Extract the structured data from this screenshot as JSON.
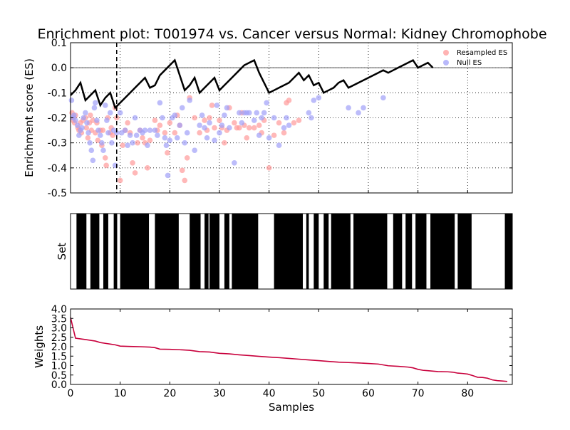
{
  "chart_data": [
    {
      "type": "scatter",
      "title": "Enrichment plot: T001974 vs. Cancer versus Normal: Kidney Chromophobe",
      "ylabel": "Enrichment score (ES)",
      "xlim": [
        0,
        89
      ],
      "ylim": [
        -0.5,
        0.1
      ],
      "yticks": [
        "-0.5",
        "-0.4",
        "-0.3",
        "-0.2",
        "-0.1",
        "0.0",
        "0.1"
      ],
      "grid": true,
      "legend_position": "top-right",
      "cutoff_x": 9.3,
      "es_line": {
        "x": [
          0,
          1,
          2,
          3,
          4,
          5,
          6,
          7,
          8,
          9,
          10,
          11,
          12,
          13,
          14,
          15,
          16,
          17,
          18,
          19,
          20,
          21,
          22,
          23,
          24,
          25,
          26,
          27,
          28,
          29,
          30,
          31,
          32,
          33,
          34,
          35,
          36,
          37,
          38,
          39,
          40,
          41,
          42,
          43,
          44,
          45,
          46,
          47,
          48,
          49,
          50,
          51,
          52,
          53,
          54,
          55,
          56,
          57,
          58,
          59,
          60,
          61,
          62,
          63,
          64,
          65,
          66,
          67,
          68,
          69,
          70,
          71,
          72,
          73
        ],
        "y": [
          -0.11,
          -0.09,
          -0.06,
          -0.13,
          -0.11,
          -0.09,
          -0.15,
          -0.12,
          -0.1,
          -0.16,
          -0.14,
          -0.12,
          -0.1,
          -0.08,
          -0.06,
          -0.04,
          -0.08,
          -0.07,
          -0.03,
          -0.01,
          0.01,
          0.03,
          -0.03,
          -0.09,
          -0.07,
          -0.04,
          -0.1,
          -0.08,
          -0.06,
          -0.04,
          -0.09,
          -0.07,
          -0.05,
          -0.03,
          -0.01,
          0.01,
          0.02,
          0.03,
          -0.02,
          -0.06,
          -0.1,
          -0.09,
          -0.08,
          -0.07,
          -0.06,
          -0.04,
          -0.02,
          -0.05,
          -0.03,
          -0.07,
          -0.06,
          -0.1,
          -0.09,
          -0.08,
          -0.06,
          -0.05,
          -0.08,
          -0.07,
          -0.06,
          -0.05,
          -0.04,
          -0.03,
          -0.02,
          -0.01,
          -0.02,
          -0.01,
          0.0,
          0.01,
          0.02,
          0.03,
          0.0,
          0.01,
          0.02,
          0.0
        ]
      },
      "series": [
        {
          "name": "Resampled ES",
          "color": "#ff9a9a",
          "points": [
            [
              0.3,
              -0.18
            ],
            [
              0.5,
              -0.21
            ],
            [
              0.6,
              -0.2
            ],
            [
              0.8,
              -0.22
            ],
            [
              1.0,
              -0.19
            ],
            [
              1.5,
              -0.24
            ],
            [
              1.7,
              -0.25
            ],
            [
              2.0,
              -0.22
            ],
            [
              2.2,
              -0.26
            ],
            [
              2.5,
              -0.21
            ],
            [
              3.0,
              -0.2
            ],
            [
              3.2,
              -0.24
            ],
            [
              3.5,
              -0.28
            ],
            [
              3.8,
              -0.22
            ],
            [
              4.0,
              -0.19
            ],
            [
              4.2,
              -0.25
            ],
            [
              4.5,
              -0.21
            ],
            [
              5.0,
              -0.26
            ],
            [
              5.3,
              -0.22
            ],
            [
              5.5,
              -0.29
            ],
            [
              6.0,
              -0.25
            ],
            [
              6.3,
              -0.31
            ],
            [
              6.5,
              -0.25
            ],
            [
              7.0,
              -0.36
            ],
            [
              7.2,
              -0.39
            ],
            [
              7.5,
              -0.2
            ],
            [
              8.0,
              -0.26
            ],
            [
              8.2,
              -0.24
            ],
            [
              8.5,
              -0.27
            ],
            [
              9.0,
              -0.16
            ],
            [
              9.3,
              -0.2
            ],
            [
              10.0,
              -0.45
            ],
            [
              10.5,
              -0.31
            ],
            [
              11.0,
              -0.25
            ],
            [
              11.5,
              -0.22
            ],
            [
              12.0,
              -0.26
            ],
            [
              12.5,
              -0.38
            ],
            [
              13.0,
              -0.42
            ],
            [
              13.5,
              -0.3
            ],
            [
              14.0,
              -0.25
            ],
            [
              14.5,
              -0.28
            ],
            [
              15.0,
              -0.3
            ],
            [
              15.5,
              -0.4
            ],
            [
              16.0,
              -0.29
            ],
            [
              17.0,
              -0.21
            ],
            [
              17.5,
              -0.25
            ],
            [
              18.0,
              -0.23
            ],
            [
              19.0,
              -0.26
            ],
            [
              19.5,
              -0.34
            ],
            [
              20.0,
              -0.22
            ],
            [
              21.0,
              -0.26
            ],
            [
              21.5,
              -0.19
            ],
            [
              22.0,
              -0.23
            ],
            [
              22.5,
              -0.41
            ],
            [
              23.0,
              -0.45
            ],
            [
              23.5,
              -0.36
            ],
            [
              24.0,
              -0.12
            ],
            [
              25.0,
              -0.2
            ],
            [
              26.0,
              -0.26
            ],
            [
              27.0,
              -0.21
            ],
            [
              27.5,
              -0.25
            ],
            [
              28.0,
              -0.2
            ],
            [
              28.5,
              -0.15
            ],
            [
              29.0,
              -0.24
            ],
            [
              30.0,
              -0.21
            ],
            [
              30.5,
              -0.24
            ],
            [
              31.0,
              -0.3
            ],
            [
              31.5,
              -0.25
            ],
            [
              32.0,
              -0.16
            ],
            [
              33.0,
              -0.22
            ],
            [
              33.5,
              -0.24
            ],
            [
              34.0,
              -0.24
            ],
            [
              34.5,
              -0.18
            ],
            [
              35.0,
              -0.23
            ],
            [
              35.5,
              -0.28
            ],
            [
              36.0,
              -0.24
            ],
            [
              37.0,
              -0.24
            ],
            [
              38.0,
              -0.23
            ],
            [
              38.5,
              -0.26
            ],
            [
              39.0,
              -0.21
            ],
            [
              40.0,
              -0.4
            ],
            [
              41.0,
              -0.27
            ],
            [
              42.0,
              -0.22
            ],
            [
              43.0,
              -0.26
            ],
            [
              43.5,
              -0.14
            ],
            [
              44.0,
              -0.13
            ],
            [
              45.0,
              -0.22
            ],
            [
              46.0,
              -0.21
            ]
          ]
        },
        {
          "name": "Null ES",
          "color": "#a0a0f8",
          "points": [
            [
              0.2,
              -0.13
            ],
            [
              0.5,
              -0.2
            ],
            [
              0.7,
              -0.19
            ],
            [
              1.0,
              -0.21
            ],
            [
              1.4,
              -0.23
            ],
            [
              1.7,
              -0.27
            ],
            [
              2.0,
              -0.25
            ],
            [
              2.3,
              -0.24
            ],
            [
              2.6,
              -0.2
            ],
            [
              3.0,
              -0.18
            ],
            [
              3.3,
              -0.22
            ],
            [
              3.6,
              -0.26
            ],
            [
              3.9,
              -0.3
            ],
            [
              4.2,
              -0.33
            ],
            [
              4.5,
              -0.37
            ],
            [
              4.8,
              -0.16
            ],
            [
              5.0,
              -0.14
            ],
            [
              5.3,
              -0.21
            ],
            [
              5.6,
              -0.25
            ],
            [
              6.0,
              -0.27
            ],
            [
              6.3,
              -0.3
            ],
            [
              6.6,
              -0.33
            ],
            [
              7.0,
              -0.15
            ],
            [
              7.3,
              -0.21
            ],
            [
              7.6,
              -0.26
            ],
            [
              8.0,
              -0.18
            ],
            [
              8.3,
              -0.3
            ],
            [
              8.7,
              -0.25
            ],
            [
              9.0,
              -0.39
            ],
            [
              9.3,
              -0.26
            ],
            [
              10.0,
              -0.18
            ],
            [
              10.3,
              -0.26
            ],
            [
              11.0,
              -0.25
            ],
            [
              11.5,
              -0.31
            ],
            [
              12.0,
              -0.27
            ],
            [
              12.5,
              -0.3
            ],
            [
              13.0,
              -0.2
            ],
            [
              13.3,
              -0.27
            ],
            [
              14.0,
              -0.25
            ],
            [
              14.5,
              -0.26
            ],
            [
              15.0,
              -0.25
            ],
            [
              15.5,
              -0.31
            ],
            [
              16.0,
              -0.25
            ],
            [
              17.0,
              -0.25
            ],
            [
              17.5,
              -0.27
            ],
            [
              18.0,
              -0.14
            ],
            [
              18.5,
              -0.2
            ],
            [
              19.0,
              -0.28
            ],
            [
              19.3,
              -0.31
            ],
            [
              19.6,
              -0.43
            ],
            [
              20.0,
              -0.29
            ],
            [
              20.5,
              -0.2
            ],
            [
              21.0,
              -0.19
            ],
            [
              21.5,
              -0.28
            ],
            [
              22.0,
              -0.23
            ],
            [
              22.5,
              -0.16
            ],
            [
              23.0,
              -0.3
            ],
            [
              23.5,
              -0.26
            ],
            [
              24.0,
              -0.13
            ],
            [
              25.0,
              -0.33
            ],
            [
              26.0,
              -0.23
            ],
            [
              26.5,
              -0.19
            ],
            [
              27.0,
              -0.24
            ],
            [
              27.5,
              -0.28
            ],
            [
              28.0,
              -0.22
            ],
            [
              29.0,
              -0.29
            ],
            [
              29.5,
              -0.15
            ],
            [
              30.0,
              -0.26
            ],
            [
              30.5,
              -0.23
            ],
            [
              31.0,
              -0.19
            ],
            [
              31.5,
              -0.16
            ],
            [
              32.0,
              -0.24
            ],
            [
              33.0,
              -0.38
            ],
            [
              34.0,
              -0.18
            ],
            [
              34.5,
              -0.22
            ],
            [
              35.0,
              -0.18
            ],
            [
              35.5,
              -0.18
            ],
            [
              36.0,
              -0.18
            ],
            [
              37.0,
              -0.21
            ],
            [
              37.5,
              -0.18
            ],
            [
              38.0,
              -0.27
            ],
            [
              38.5,
              -0.2
            ],
            [
              39.0,
              -0.18
            ],
            [
              39.5,
              -0.14
            ],
            [
              40.0,
              -0.28
            ],
            [
              41.0,
              -0.2
            ],
            [
              42.0,
              -0.31
            ],
            [
              43.0,
              -0.24
            ],
            [
              43.5,
              -0.2
            ],
            [
              44.0,
              -0.23
            ],
            [
              48.0,
              -0.18
            ],
            [
              48.5,
              -0.2
            ],
            [
              49.0,
              -0.13
            ],
            [
              50.0,
              -0.12
            ],
            [
              56.0,
              -0.16
            ],
            [
              58.0,
              -0.18
            ],
            [
              59.0,
              -0.16
            ],
            [
              63.0,
              -0.12
            ]
          ]
        }
      ]
    },
    {
      "type": "barcode",
      "ylabel": "Set",
      "xlim": [
        0,
        89
      ],
      "segments": [
        [
          1.2,
          3.2
        ],
        [
          4.0,
          5.8
        ],
        [
          6.6,
          7.6
        ],
        [
          8.7,
          9.4
        ],
        [
          10.0,
          15.8
        ],
        [
          17.0,
          21.8
        ],
        [
          24.0,
          26.2
        ],
        [
          27.0,
          27.8
        ],
        [
          28.0,
          30.0
        ],
        [
          31.0,
          32.0
        ],
        [
          32.5,
          37.8
        ],
        [
          41.0,
          46.8
        ],
        [
          47.5,
          48.0
        ],
        [
          49.0,
          50.0
        ],
        [
          51.0,
          52.0
        ],
        [
          52.5,
          56.4
        ],
        [
          57.0,
          63.8
        ],
        [
          65.0,
          66.8
        ],
        [
          67.5,
          68.8
        ],
        [
          69.5,
          71.7
        ],
        [
          72.5,
          77.4
        ],
        [
          78.0,
          80.8
        ],
        [
          87.5,
          89.0
        ]
      ]
    },
    {
      "type": "line",
      "xlabel": "Samples",
      "ylabel": "Weights",
      "xlim": [
        0,
        89
      ],
      "ylim": [
        0,
        4.0
      ],
      "xticks": [
        "0",
        "10",
        "20",
        "30",
        "40",
        "50",
        "60",
        "70",
        "80"
      ],
      "yticks": [
        "0.0",
        "0.5",
        "1.0",
        "1.5",
        "2.0",
        "2.5",
        "3.0",
        "3.5",
        "4.0"
      ],
      "color": "#c8003c",
      "x": [
        0,
        0.5,
        1,
        3,
        5,
        6,
        7,
        8,
        9,
        10,
        12,
        14,
        16,
        17,
        18,
        20,
        22,
        24,
        26,
        28,
        30,
        32,
        34,
        36,
        38,
        40,
        42,
        44,
        46,
        48,
        50,
        52,
        54,
        56,
        58,
        60,
        62,
        64,
        66,
        68,
        69,
        70,
        71,
        72,
        74,
        76,
        77,
        78,
        79,
        80,
        81,
        82,
        83,
        84,
        85,
        86,
        87,
        88
      ],
      "y": [
        3.55,
        3.0,
        2.45,
        2.38,
        2.3,
        2.22,
        2.18,
        2.14,
        2.1,
        2.03,
        2.01,
        2.0,
        1.98,
        1.95,
        1.87,
        1.86,
        1.84,
        1.81,
        1.74,
        1.72,
        1.65,
        1.62,
        1.57,
        1.53,
        1.49,
        1.45,
        1.42,
        1.38,
        1.34,
        1.3,
        1.26,
        1.22,
        1.18,
        1.16,
        1.14,
        1.11,
        1.08,
        0.99,
        0.96,
        0.92,
        0.88,
        0.8,
        0.75,
        0.73,
        0.68,
        0.67,
        0.65,
        0.6,
        0.58,
        0.55,
        0.47,
        0.38,
        0.37,
        0.33,
        0.24,
        0.2,
        0.18,
        0.16
      ]
    }
  ]
}
